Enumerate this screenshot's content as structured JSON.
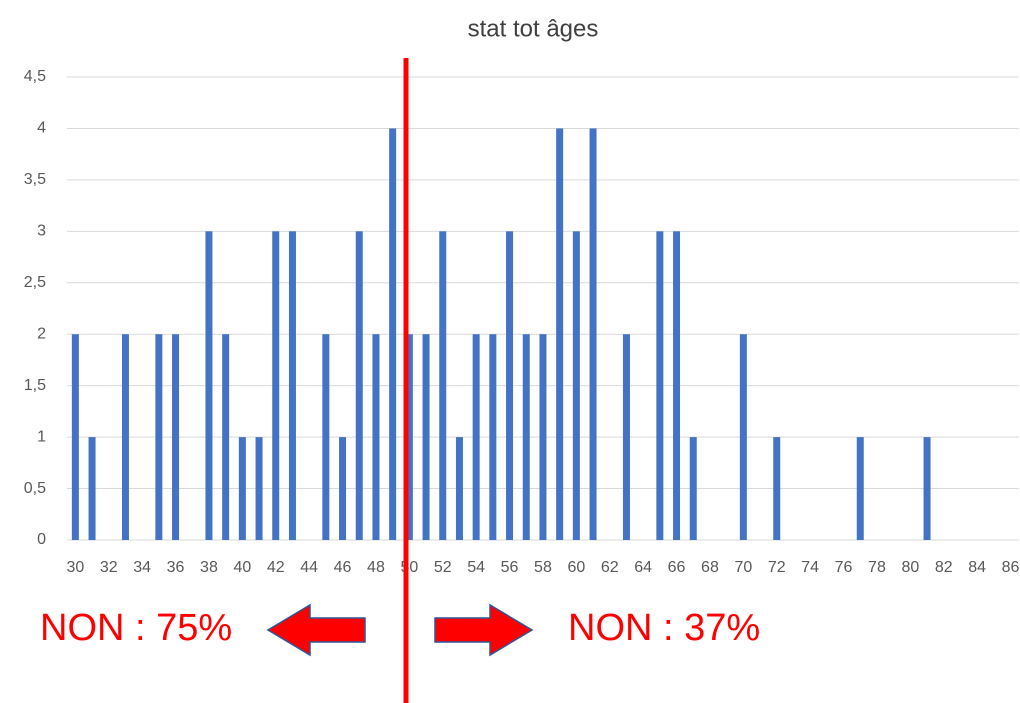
{
  "chart_data": {
    "type": "bar",
    "title": "stat tot âges",
    "categories": [
      30,
      null,
      32,
      null,
      34,
      null,
      36,
      null,
      38,
      null,
      40,
      null,
      42,
      null,
      44,
      null,
      46,
      null,
      48,
      null,
      50,
      null,
      52,
      null,
      54,
      null,
      56,
      null,
      58,
      null,
      60,
      null,
      62,
      null,
      64,
      null,
      66,
      null,
      68,
      null,
      70,
      null,
      72,
      null,
      74,
      null,
      76,
      null,
      78,
      null,
      80,
      null,
      82,
      null,
      84,
      null,
      86
    ],
    "values": [
      2,
      1,
      0,
      2,
      0,
      2,
      2,
      0,
      3,
      2,
      1,
      1,
      3,
      3,
      0,
      2,
      1,
      3,
      2,
      4,
      2,
      2,
      3,
      1,
      2,
      2,
      3,
      2,
      2,
      4,
      3,
      4,
      0,
      2,
      0,
      3,
      3,
      1,
      0,
      0,
      2,
      0,
      1,
      0,
      0,
      0,
      0,
      1,
      0,
      0,
      0,
      1,
      0,
      0,
      0,
      0,
      0
    ],
    "color": "#4472c4",
    "ylim": [
      0,
      4.5
    ],
    "yticks": [
      0,
      {
        "value": 0.5,
        "label": "0,5"
      },
      1,
      {
        "value": 1.5,
        "label": "1,5"
      },
      2,
      {
        "value": 2.5,
        "label": "2,5"
      },
      3,
      {
        "value": 3.5,
        "label": "3,5"
      },
      4,
      {
        "value": 4.5,
        "label": "4,5"
      }
    ],
    "grid": true,
    "annotations": [
      "NON : 75%",
      "NON : 37%"
    ]
  }
}
